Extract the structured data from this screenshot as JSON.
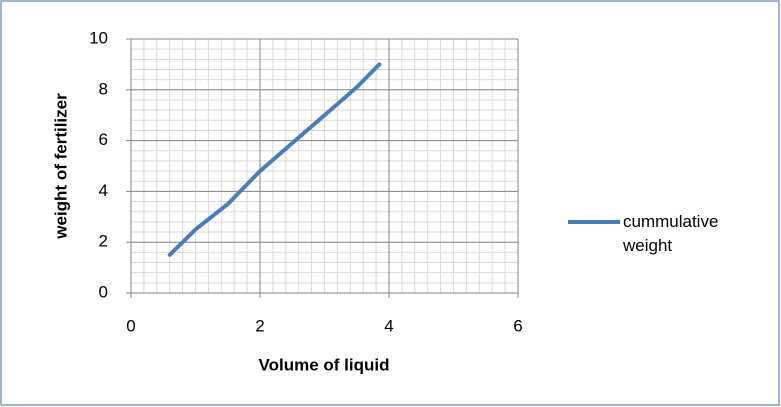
{
  "chart_data": {
    "type": "line",
    "xlabel": "Volume of liquid",
    "ylabel": "weight of fertilizer",
    "x": [
      0.6,
      1,
      1.5,
      2,
      2.5,
      3,
      3.5,
      3.85
    ],
    "series": [
      {
        "name": "cummulative weight",
        "color": "#4a7ebb",
        "values": [
          1.5,
          2.5,
          3.5,
          4.8,
          5.9,
          7,
          8.1,
          9
        ]
      }
    ],
    "xlim": [
      0,
      6
    ],
    "xticks": [
      0,
      2,
      4,
      6
    ],
    "ylim": [
      0,
      10
    ],
    "yticks": [
      0,
      2,
      4,
      6,
      8,
      10
    ],
    "grid": true,
    "xminor_step": 0.2,
    "yminor_step": 0.4,
    "legend": "right"
  }
}
